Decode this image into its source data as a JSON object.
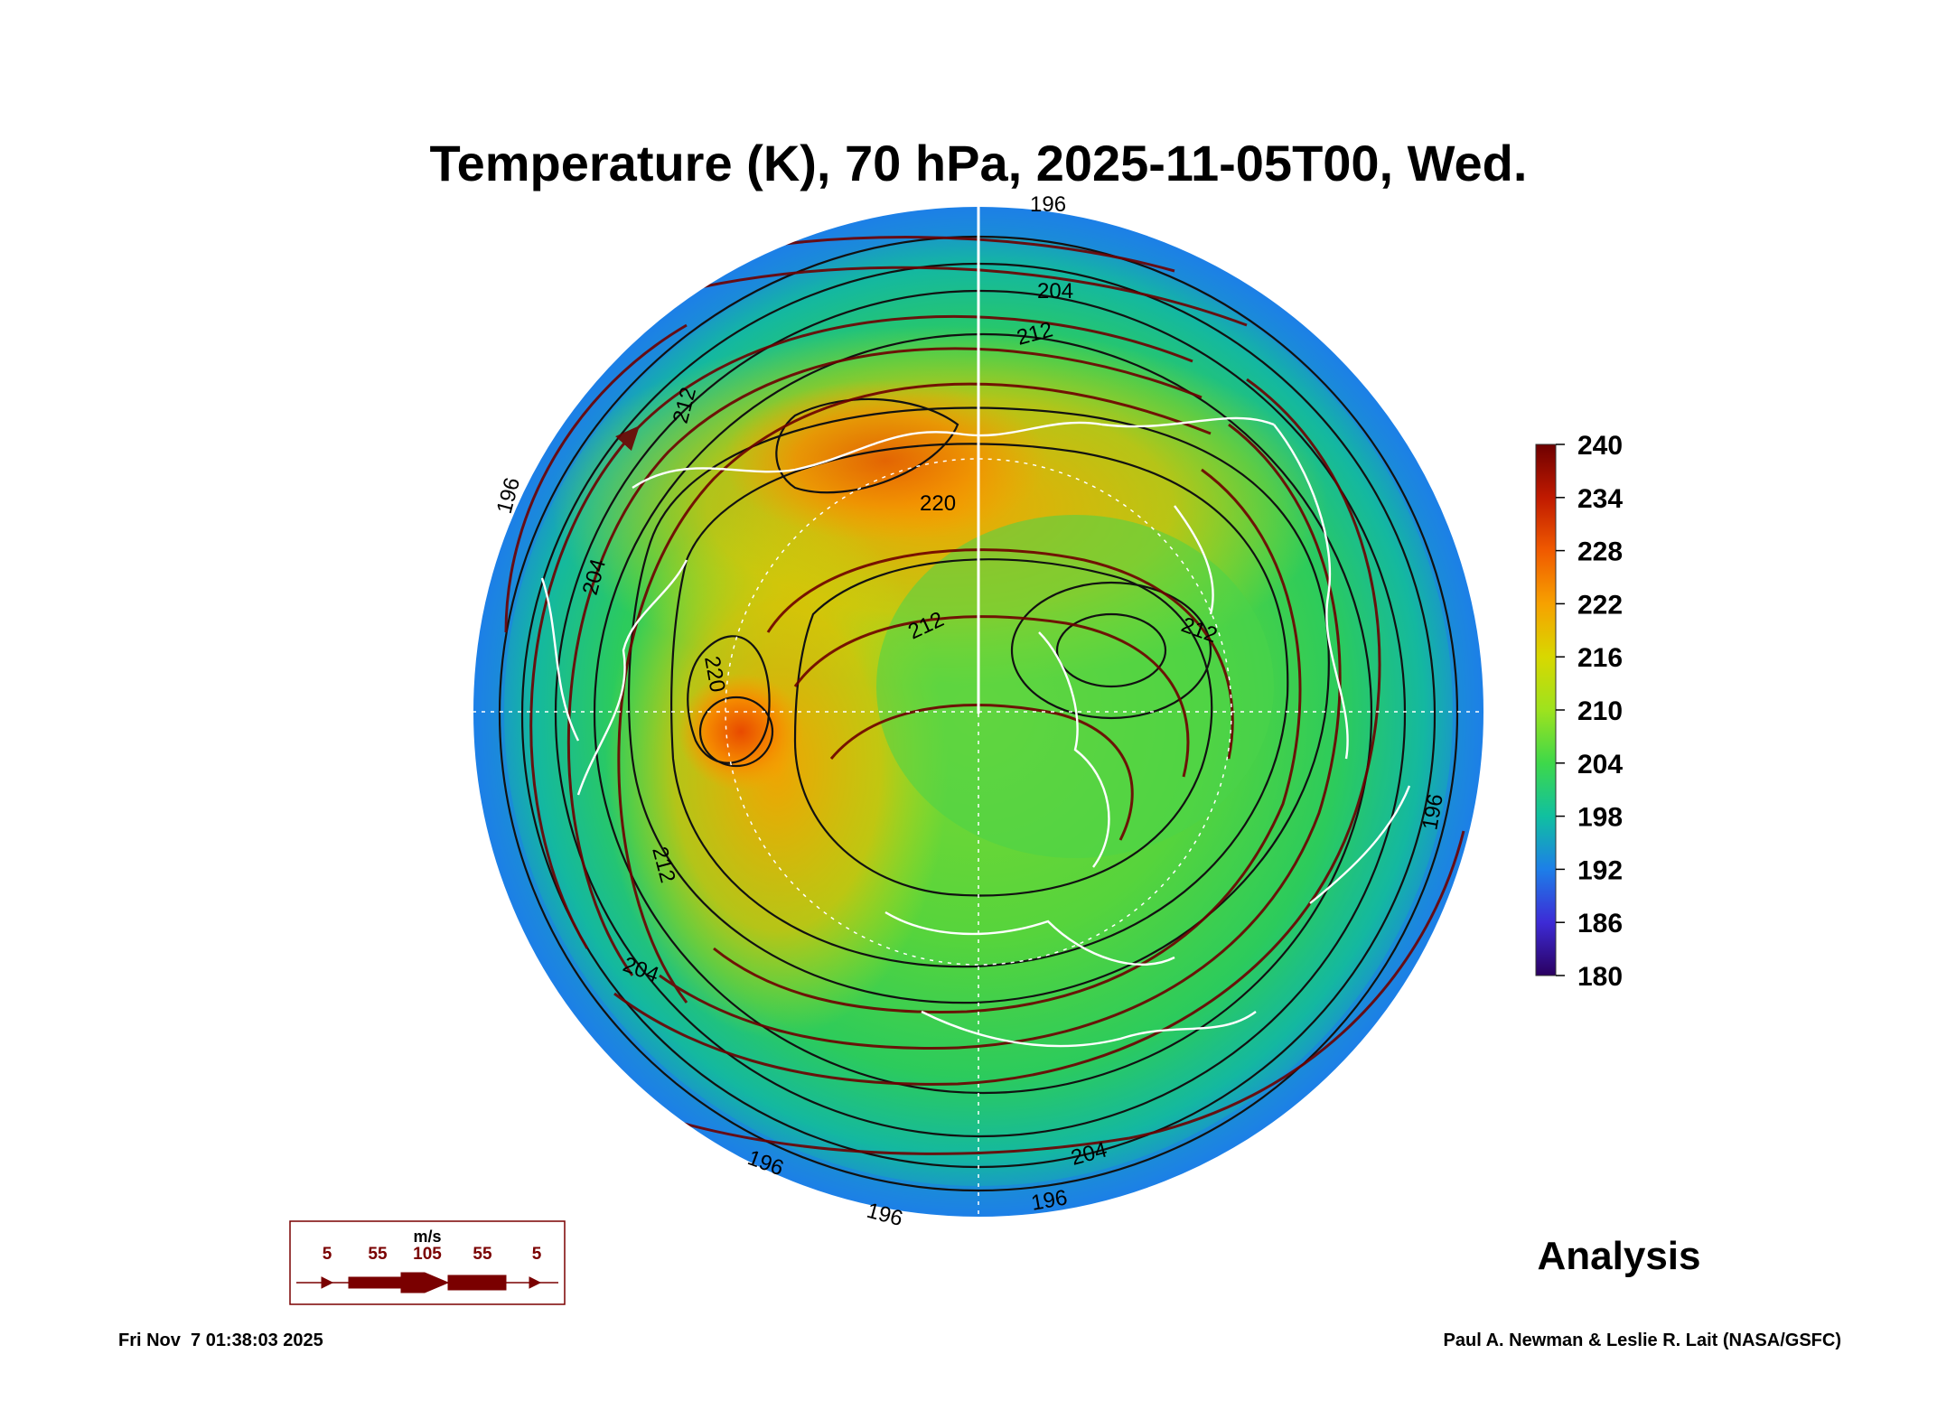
{
  "title": "Temperature (K), 70 hPa, 2025-11-05T00, Wed.",
  "colorbar": {
    "ticks": [
      "240",
      "234",
      "228",
      "222",
      "216",
      "210",
      "204",
      "198",
      "192",
      "186",
      "180"
    ],
    "colors": [
      "#6e0000",
      "#c01a00",
      "#f05a00",
      "#f7a100",
      "#d8d800",
      "#9ee21e",
      "#3ed84a",
      "#10c0a0",
      "#1d7fe8",
      "#3d2bd6",
      "#2a0060"
    ]
  },
  "contour_labels": {
    "c1": "196",
    "c2": "204",
    "c3": "212",
    "c4": "212",
    "c5": "220",
    "c6": "220",
    "c7": "212",
    "c8": "212",
    "c9": "204",
    "c10": "196",
    "c11": "196",
    "c12": "204",
    "c13": "196",
    "c14": "196",
    "c15": "212",
    "c16": "204",
    "c17": "196"
  },
  "wind_legend": {
    "unit": "m/s",
    "labels": [
      "5",
      "55",
      "105",
      "55",
      "5"
    ],
    "color": "#7a0000"
  },
  "analysis_label": "Analysis",
  "footer_left": "Fri Nov  7 01:38:03 2025",
  "footer_right": "Paul A. Newman & Leslie R. Lait (NASA/GSFC)"
}
